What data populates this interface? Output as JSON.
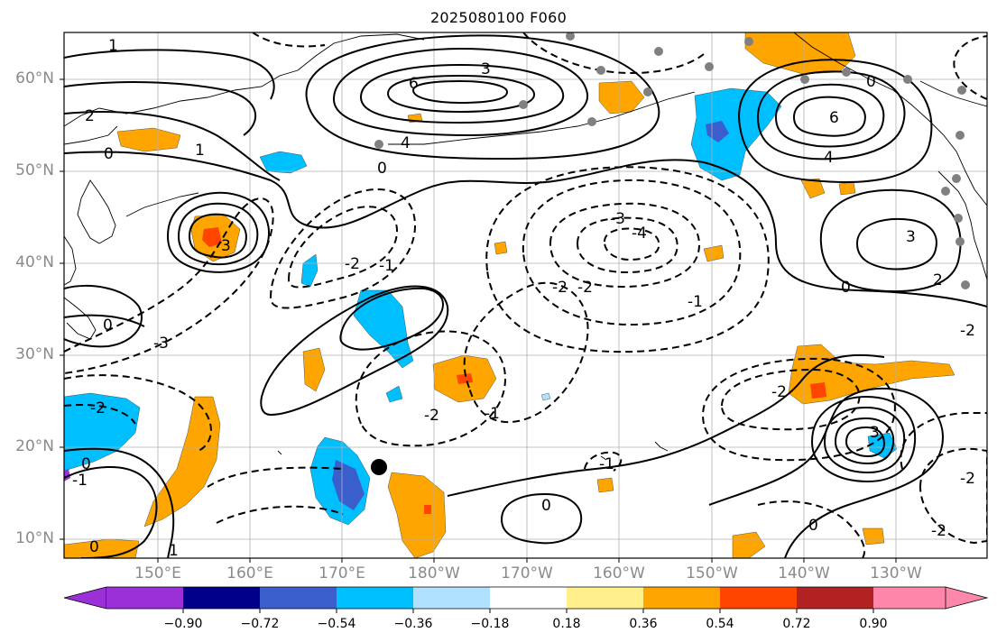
{
  "title": "2025080100 F060",
  "lat_labels": [
    "60°N",
    "50°N",
    "40°N",
    "30°N",
    "20°N",
    "10°N"
  ],
  "lon_labels": [
    "150°E",
    "160°E",
    "170°E",
    "180°W",
    "170°W",
    "160°W",
    "150°W",
    "140°W",
    "130°W"
  ],
  "contour_labels": {
    "positive": [
      "1",
      "2",
      "3",
      "4",
      "6",
      "3",
      "4",
      "6",
      "3",
      "2",
      "3",
      "1",
      "1",
      "3",
      "2"
    ],
    "negative": [
      "-2",
      "-1",
      "-3",
      "-2",
      "-4",
      "-2",
      "-1",
      "-2",
      "-2",
      "-1",
      "-3",
      "-2",
      "-1",
      "-2",
      "-2",
      "-1",
      "-2"
    ],
    "zero": [
      "0",
      "0",
      "0",
      "0",
      "0",
      "0",
      "0",
      "0",
      "0"
    ]
  },
  "colorbar": {
    "ticks": [
      "−0.90",
      "−0.72",
      "−0.54",
      "−0.36",
      "−0.18",
      "0.18",
      "0.36",
      "0.54",
      "0.72",
      "0.90"
    ],
    "colors": [
      "#9b30d9",
      "#00008b",
      "#3a5fcd",
      "#00bfff",
      "#b0e2ff",
      "#ffffff",
      "#fff08c",
      "#ffa500",
      "#ff4500",
      "#b22222",
      "#ff88aa"
    ]
  },
  "markers": {
    "station_color": "#808080",
    "center_marker_color": "#000000"
  }
}
